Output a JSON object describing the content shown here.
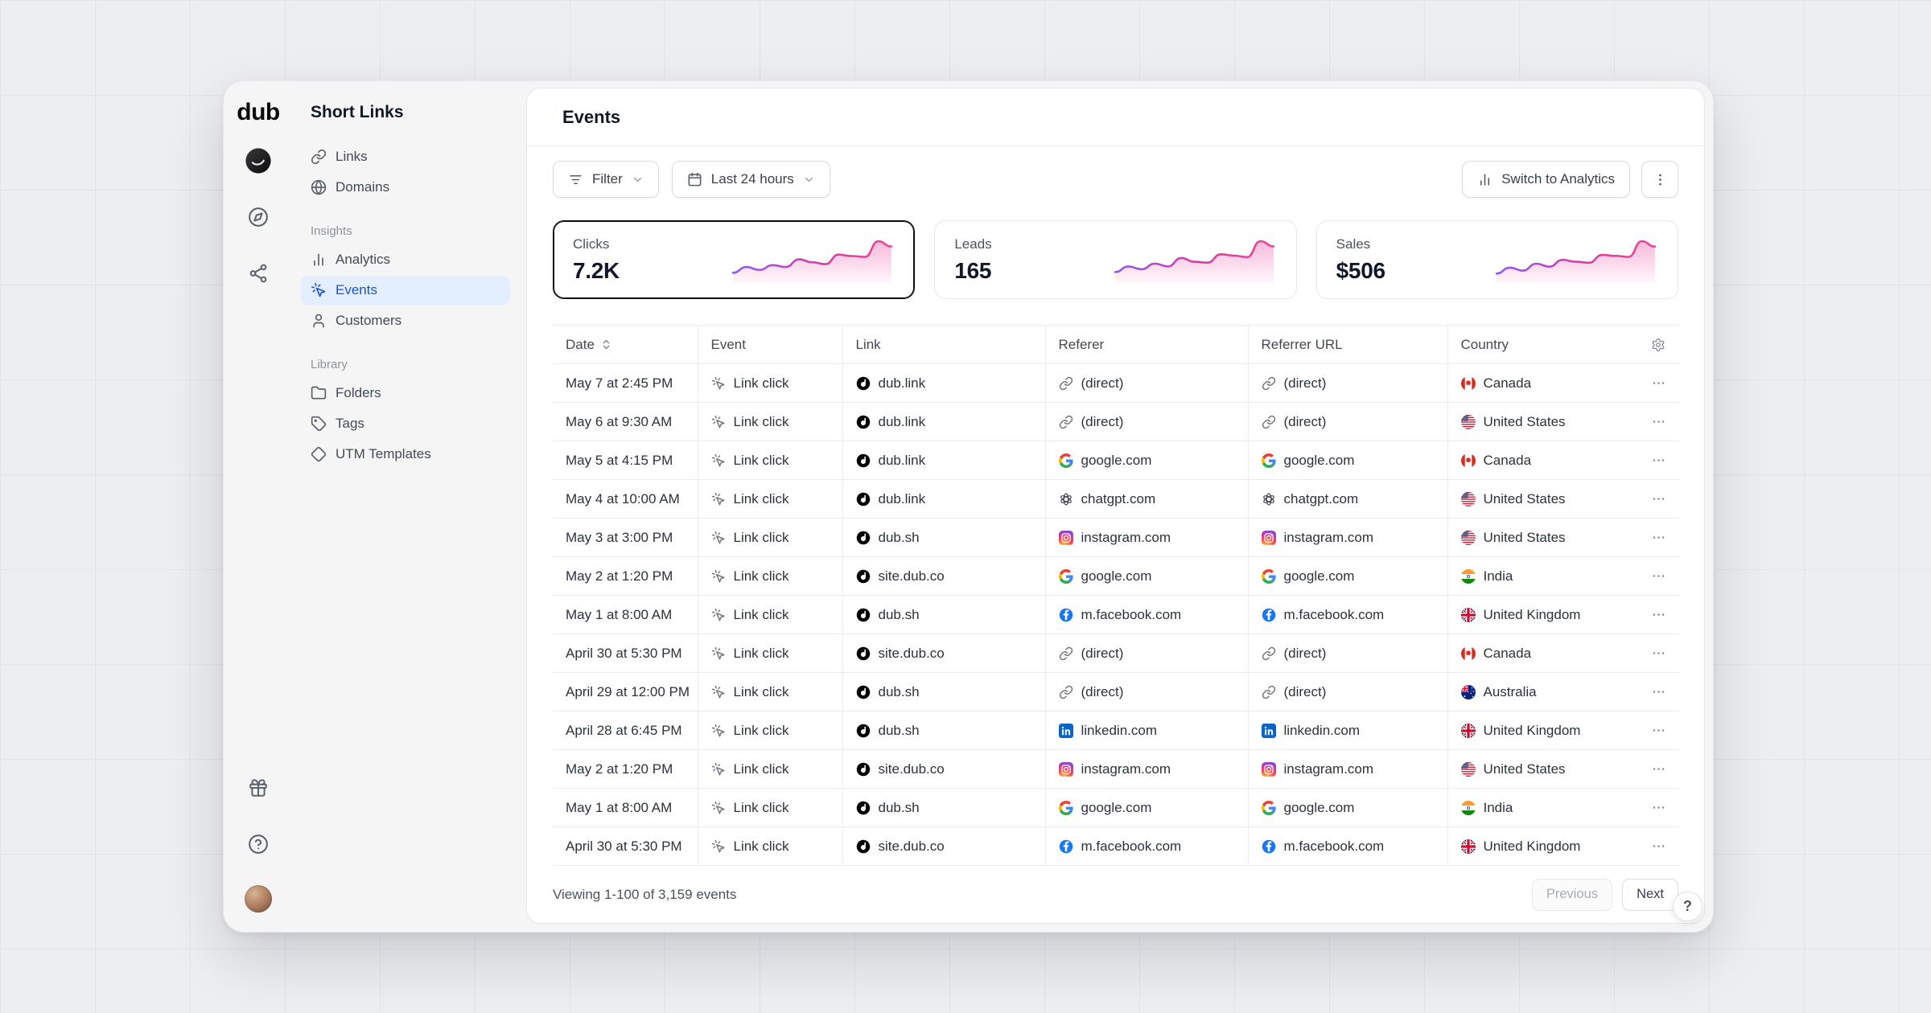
{
  "rail": {
    "logo": "dub",
    "icons_top": [
      "workspace-avatar",
      "compass",
      "integrations"
    ],
    "icons_bottom": [
      "gift",
      "help",
      "user-avatar"
    ]
  },
  "sidebar": {
    "title": "Short Links",
    "items": [
      {
        "label": "Links"
      },
      {
        "label": "Domains"
      }
    ],
    "sections": [
      {
        "label": "Insights",
        "items": [
          {
            "label": "Analytics"
          },
          {
            "label": "Events",
            "active": true
          },
          {
            "label": "Customers"
          }
        ]
      },
      {
        "label": "Library",
        "items": [
          {
            "label": "Folders"
          },
          {
            "label": "Tags"
          },
          {
            "label": "UTM Templates"
          }
        ]
      }
    ]
  },
  "header": {
    "title": "Events"
  },
  "toolbar": {
    "filter_label": "Filter",
    "date_range_label": "Last 24 hours",
    "switch_label": "Switch to Analytics"
  },
  "cards": [
    {
      "label": "Clicks",
      "value": "7.2K",
      "selected": true,
      "spark": [
        18,
        30,
        24,
        34,
        30,
        46,
        40,
        36,
        56,
        53,
        51,
        84,
        73
      ]
    },
    {
      "label": "Leads",
      "value": "165",
      "selected": false,
      "spark": [
        20,
        32,
        26,
        38,
        32,
        50,
        42,
        40,
        58,
        55,
        52,
        86,
        75
      ]
    },
    {
      "label": "Sales",
      "value": "$506",
      "selected": false,
      "spark": [
        16,
        28,
        22,
        36,
        30,
        44,
        40,
        38,
        54,
        52,
        50,
        82,
        71
      ]
    }
  ],
  "table": {
    "columns": [
      "Date",
      "Event",
      "Link",
      "Referer",
      "Referrer URL",
      "Country"
    ],
    "rows": [
      {
        "date": "May 7 at 2:45 PM",
        "event": "Link click",
        "link": "dub.link",
        "referer": "(direct)",
        "referer_icon": "direct",
        "referrer_url": "(direct)",
        "referrer_url_icon": "direct",
        "country": "Canada",
        "country_flag": "flag-ca"
      },
      {
        "date": "May 6 at 9:30 AM",
        "event": "Link click",
        "link": "dub.link",
        "referer": "(direct)",
        "referer_icon": "direct",
        "referrer_url": "(direct)",
        "referrer_url_icon": "direct",
        "country": "United States",
        "country_flag": "flag-us"
      },
      {
        "date": "May 5 at 4:15 PM",
        "event": "Link click",
        "link": "dub.link",
        "referer": "google.com",
        "referer_icon": "google",
        "referrer_url": "google.com",
        "referrer_url_icon": "google",
        "country": "Canada",
        "country_flag": "flag-ca"
      },
      {
        "date": "May 4 at 10:00 AM",
        "event": "Link click",
        "link": "dub.link",
        "referer": "chatgpt.com",
        "referer_icon": "openai",
        "referrer_url": "chatgpt.com",
        "referrer_url_icon": "openai",
        "country": "United States",
        "country_flag": "flag-us"
      },
      {
        "date": "May 3 at 3:00 PM",
        "event": "Link click",
        "link": "dub.sh",
        "referer": "instagram.com",
        "referer_icon": "instagram",
        "referrer_url": "instagram.com",
        "referrer_url_icon": "instagram",
        "country": "United States",
        "country_flag": "flag-us"
      },
      {
        "date": "May 2 at 1:20 PM",
        "event": "Link click",
        "link": "site.dub.co",
        "referer": "google.com",
        "referer_icon": "google",
        "referrer_url": "google.com",
        "referrer_url_icon": "google",
        "country": "India",
        "country_flag": "flag-in"
      },
      {
        "date": "May 1 at 8:00 AM",
        "event": "Link click",
        "link": "dub.sh",
        "referer": "m.facebook.com",
        "referer_icon": "facebook",
        "referrer_url": "m.facebook.com",
        "referrer_url_icon": "facebook",
        "country": "United Kingdom",
        "country_flag": "flag-gb"
      },
      {
        "date": "April 30 at 5:30 PM",
        "event": "Link click",
        "link": "site.dub.co",
        "referer": "(direct)",
        "referer_icon": "direct",
        "referrer_url": "(direct)",
        "referrer_url_icon": "direct",
        "country": "Canada",
        "country_flag": "flag-ca"
      },
      {
        "date": "April 29 at 12:00 PM",
        "event": "Link click",
        "link": "dub.sh",
        "referer": "(direct)",
        "referer_icon": "direct",
        "referrer_url": "(direct)",
        "referrer_url_icon": "direct",
        "country": "Australia",
        "country_flag": "flag-au"
      },
      {
        "date": "April 28 at 6:45 PM",
        "event": "Link click",
        "link": "dub.sh",
        "referer": "linkedin.com",
        "referer_icon": "linkedin",
        "referrer_url": "linkedin.com",
        "referrer_url_icon": "linkedin",
        "country": "United Kingdom",
        "country_flag": "flag-gb"
      },
      {
        "date": "May 2 at 1:20 PM",
        "event": "Link click",
        "link": "site.dub.co",
        "referer": "instagram.com",
        "referer_icon": "instagram",
        "referrer_url": "instagram.com",
        "referrer_url_icon": "instagram",
        "country": "United States",
        "country_flag": "flag-us"
      },
      {
        "date": "May 1 at 8:00 AM",
        "event": "Link click",
        "link": "dub.sh",
        "referer": "google.com",
        "referer_icon": "google",
        "referrer_url": "google.com",
        "referrer_url_icon": "google",
        "country": "India",
        "country_flag": "flag-in"
      },
      {
        "date": "April 30 at 5:30 PM",
        "event": "Link click",
        "link": "site.dub.co",
        "referer": "m.facebook.com",
        "referer_icon": "facebook",
        "referrer_url": "m.facebook.com",
        "referrer_url_icon": "facebook",
        "country": "United Kingdom",
        "country_flag": "flag-gb"
      }
    ]
  },
  "footer": {
    "viewing": "Viewing 1-100 of 3,159 events",
    "prev_label": "Previous",
    "next_label": "Next"
  },
  "help_fab": {
    "label": "?"
  },
  "colors": {
    "accent_blue": "#1c53d8",
    "active_bg": "#e3eeff",
    "spark_stroke_start": "#8b5cf6",
    "spark_stroke_end": "#ec4899",
    "selected_card_border": "#0c0c0e"
  }
}
